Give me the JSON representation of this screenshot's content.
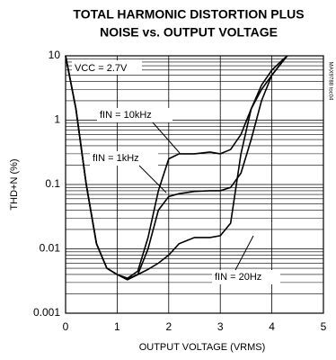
{
  "chart_data": {
    "type": "line",
    "title": [
      "TOTAL HARMONIC DISTORTION PLUS",
      "NOISE vs. OUTPUT VOLTAGE"
    ],
    "x_label": "OUTPUT VOLTAGE (VRMS)",
    "y_label": "THD+N (%)",
    "annotations": [
      "VCC = 2.7V",
      "fIN = 10kHz",
      "fIN = 1kHz",
      "fIN = 20Hz",
      "MAX9788 toc04"
    ],
    "x": [
      0,
      0.2,
      0.4,
      0.6,
      0.8,
      1.0,
      1.2,
      1.4,
      1.6,
      1.8,
      2.0,
      2.2,
      2.5,
      2.8,
      3.0,
      3.2,
      3.4,
      3.6,
      3.8,
      4.0,
      4.2,
      4.3
    ],
    "series": [
      {
        "name": "fIN = 10kHz",
        "color": "#000000",
        "values": [
          10,
          1.5,
          0.1,
          0.012,
          0.005,
          0.004,
          0.0035,
          0.0045,
          0.015,
          0.08,
          0.25,
          0.3,
          0.3,
          0.32,
          0.3,
          0.35,
          0.6,
          1.5,
          3.5,
          6,
          8.5,
          10
        ]
      },
      {
        "name": "fIN = 1kHz",
        "color": "#000000",
        "values": [
          10,
          1.5,
          0.1,
          0.012,
          0.005,
          0.004,
          0.0034,
          0.004,
          0.01,
          0.04,
          0.065,
          0.072,
          0.078,
          0.08,
          0.08,
          0.09,
          0.15,
          0.5,
          2,
          5,
          8,
          10
        ]
      },
      {
        "name": "fIN = 20Hz",
        "color": "#000000",
        "values": [
          10,
          1.5,
          0.1,
          0.012,
          0.005,
          0.004,
          0.0033,
          0.004,
          0.0048,
          0.006,
          0.008,
          0.012,
          0.015,
          0.015,
          0.016,
          0.025,
          0.3,
          1.5,
          3,
          5,
          8,
          10
        ]
      }
    ],
    "xlim": [
      0,
      5
    ],
    "xticks": [
      0,
      1,
      2,
      3,
      4,
      5
    ],
    "ylim": [
      0.001,
      10
    ],
    "yticks": [
      0.001,
      0.01,
      0.1,
      1,
      10
    ],
    "ylog": true,
    "grid": true
  }
}
